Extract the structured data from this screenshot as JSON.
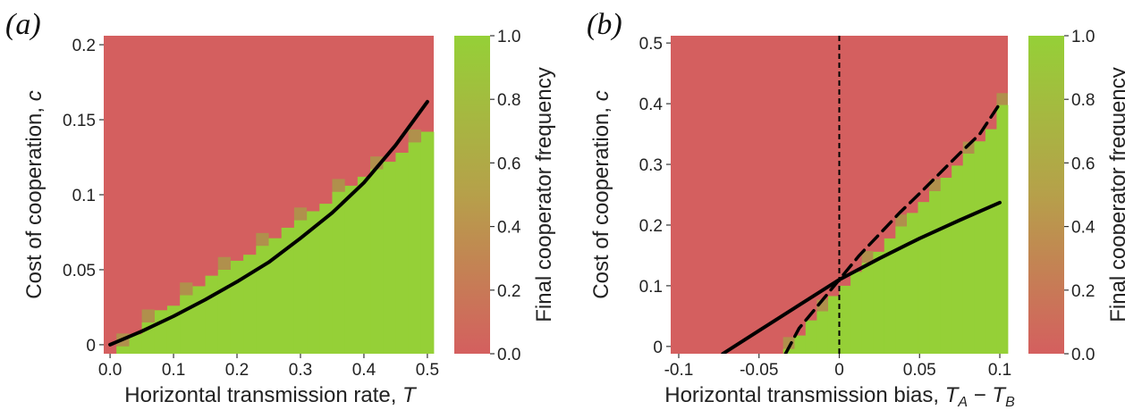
{
  "colors": {
    "low": "#d45f5f",
    "high": "#95d037",
    "curve": "#000000"
  },
  "chart_data": [
    {
      "type": "heatmap",
      "panel_label": "(a)",
      "xlabel": "Horizontal transmission rate, T",
      "ylabel": "Cost of cooperation, c",
      "colorbar_label": "Final cooperator frequency",
      "xlim": [
        -0.01,
        0.51
      ],
      "ylim": [
        -0.006,
        0.206
      ],
      "x_ticks": [
        0.0,
        0.1,
        0.2,
        0.3,
        0.4,
        0.5
      ],
      "x_tick_labels": [
        "0.0",
        "0.1",
        "0.2",
        "0.3",
        "0.4",
        "0.5"
      ],
      "y_ticks": [
        0,
        0.05,
        0.1,
        0.15,
        0.2
      ],
      "y_tick_labels": [
        "0",
        "0.05",
        "0.1",
        "0.15",
        "0.2"
      ],
      "colorbar_ticks": [
        0.0,
        0.2,
        0.4,
        0.6,
        0.8,
        1.0
      ],
      "colorbar_tick_labels": [
        "0.0",
        "0.2",
        "0.4",
        "0.6",
        "0.8",
        "1.0"
      ],
      "grid": {
        "x_start": -0.01,
        "x_step": 0.02,
        "nx": 26,
        "y_start": -0.006,
        "y_step": 0.0085,
        "ny": 25
      },
      "boundary_heights": [
        0.0,
        0.005,
        0.013,
        0.021,
        0.029,
        0.032,
        0.039,
        0.045,
        0.052,
        0.056,
        0.062,
        0.066,
        0.072,
        0.077,
        0.084,
        0.089,
        0.095,
        0.1,
        0.108,
        0.112,
        0.118,
        0.123,
        0.128,
        0.134,
        0.141,
        0.148
      ],
      "boundary_mixed": [
        1,
        3,
        6,
        9,
        12,
        15,
        18,
        21,
        24
      ],
      "curves": [
        {
          "style": "solid",
          "x": [
            0,
            0.05,
            0.1,
            0.15,
            0.2,
            0.25,
            0.3,
            0.35,
            0.4,
            0.45,
            0.5
          ],
          "y": [
            0,
            0.009,
            0.019,
            0.03,
            0.042,
            0.055,
            0.071,
            0.088,
            0.108,
            0.133,
            0.162
          ]
        }
      ],
      "vertical_lines": []
    },
    {
      "type": "heatmap",
      "panel_label": "(b)",
      "xlabel": "Horizontal transmission bias, T_A − T_B",
      "ylabel": "Cost of cooperation, c",
      "colorbar_label": "Final cooperator frequency",
      "xlim": [
        -0.105,
        0.105
      ],
      "ylim": [
        -0.012,
        0.512
      ],
      "x_ticks": [
        -0.1,
        -0.05,
        0,
        0.05,
        0.1
      ],
      "x_tick_labels": [
        "-0.1",
        "-0.05",
        "0",
        "0.05",
        "0.1"
      ],
      "y_ticks": [
        0,
        0.1,
        0.2,
        0.3,
        0.4,
        0.5
      ],
      "y_tick_labels": [
        "0",
        "0.1",
        "0.2",
        "0.3",
        "0.4",
        "0.5"
      ],
      "colorbar_ticks": [
        0.0,
        0.2,
        0.4,
        0.6,
        0.8,
        1.0
      ],
      "colorbar_tick_labels": [
        "0.0",
        "0.2",
        "0.4",
        "0.6",
        "0.8",
        "1.0"
      ],
      "grid": {
        "x_start": -0.105,
        "x_step": 0.007,
        "nx": 30,
        "y_start": -0.012,
        "y_step": 0.02,
        "ny": 27
      },
      "boundary_heights": [
        0,
        0,
        0,
        0,
        0,
        0,
        0,
        0,
        0,
        0,
        0.008,
        0.03,
        0.055,
        0.07,
        0.095,
        0.112,
        0.135,
        0.15,
        0.168,
        0.19,
        0.21,
        0.232,
        0.25,
        0.268,
        0.29,
        0.31,
        0.33,
        0.35,
        0.37,
        0.41
      ],
      "boundary_mixed": [
        10,
        13,
        17,
        20,
        23,
        26,
        29
      ],
      "curves": [
        {
          "style": "solid",
          "x": [
            -0.0725,
            -0.05,
            -0.025,
            0,
            0.025,
            0.05,
            0.075,
            0.1
          ],
          "y": [
            -0.012,
            0.026,
            0.068,
            0.11,
            0.145,
            0.178,
            0.208,
            0.237
          ]
        },
        {
          "style": "dashed",
          "x": [
            -0.0335,
            -0.025,
            -0.0125,
            0,
            0.0125,
            0.025,
            0.0375,
            0.05,
            0.0625,
            0.075,
            0.0875,
            0.1
          ],
          "y": [
            -0.012,
            0.03,
            0.07,
            0.11,
            0.15,
            0.185,
            0.22,
            0.252,
            0.285,
            0.318,
            0.35,
            0.4
          ]
        }
      ],
      "vertical_lines": [
        {
          "x": 0,
          "style": "dashed"
        }
      ]
    }
  ]
}
